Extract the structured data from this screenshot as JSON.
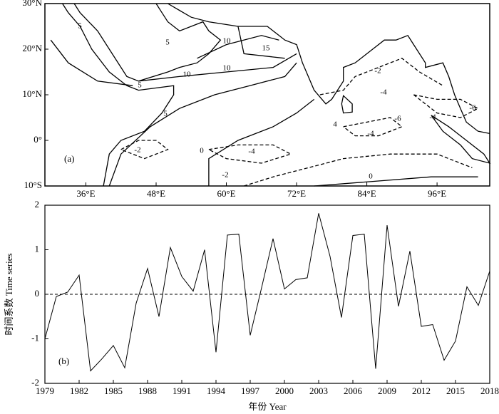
{
  "chart_data": [
    {
      "type": "map",
      "panel_label": "(a)",
      "xlim": [
        29,
        105
      ],
      "ylim": [
        -10,
        30
      ],
      "xticks": [
        {
          "value": 36,
          "label": "36°E"
        },
        {
          "value": 48,
          "label": "48°E"
        },
        {
          "value": 60,
          "label": "60°E"
        },
        {
          "value": 72,
          "label": "72°E"
        },
        {
          "value": 84,
          "label": "84°E"
        },
        {
          "value": 96,
          "label": "96°E"
        }
      ],
      "yticks": [
        {
          "value": 30,
          "label": "30°N"
        },
        {
          "value": 20,
          "label": "20°N"
        },
        {
          "value": 10,
          "label": "10°N"
        },
        {
          "value": 0,
          "label": "0°"
        },
        {
          "value": -10,
          "label": "10°S"
        }
      ],
      "contour_labels": [
        5,
        5,
        10,
        15,
        10,
        10,
        5,
        5,
        0,
        -2,
        -4,
        -2,
        -2,
        -4,
        -6,
        -4,
        0,
        -6,
        -4,
        4
      ]
    },
    {
      "type": "line",
      "panel_label": "(b)",
      "xlabel": "年份 Year",
      "ylabel": "时间系数 Time series",
      "x": [
        1979,
        1980,
        1981,
        1982,
        1983,
        1984,
        1985,
        1986,
        1987,
        1988,
        1989,
        1990,
        1991,
        1992,
        1993,
        1994,
        1995,
        1996,
        1997,
        1998,
        1999,
        2000,
        2001,
        2002,
        2003,
        2004,
        2005,
        2006,
        2007,
        2008,
        2009,
        2010,
        2011,
        2012,
        2013,
        2014,
        2015,
        2016,
        2017,
        2018
      ],
      "values": [
        -1.0,
        -0.05,
        0.05,
        0.43,
        -1.72,
        -1.45,
        -1.15,
        -1.65,
        -0.2,
        0.58,
        -0.5,
        1.05,
        0.4,
        0.07,
        1.0,
        -1.3,
        1.33,
        1.35,
        -0.92,
        0.15,
        1.25,
        0.12,
        0.33,
        0.37,
        1.82,
        0.85,
        -0.52,
        1.32,
        1.35,
        -1.67,
        1.55,
        -0.27,
        0.97,
        -0.72,
        -0.68,
        -1.48,
        -1.05,
        0.17,
        -0.25,
        0.52
      ],
      "color": "#000000",
      "reference_line": 0,
      "xlim": [
        1979,
        2018
      ],
      "ylim": [
        -2,
        2
      ],
      "xticks": [
        1979,
        1982,
        1985,
        1988,
        1991,
        1994,
        1997,
        2000,
        2003,
        2006,
        2009,
        2012,
        2015,
        2018
      ],
      "yticks": [
        -2,
        -1,
        0,
        1,
        2
      ]
    }
  ]
}
